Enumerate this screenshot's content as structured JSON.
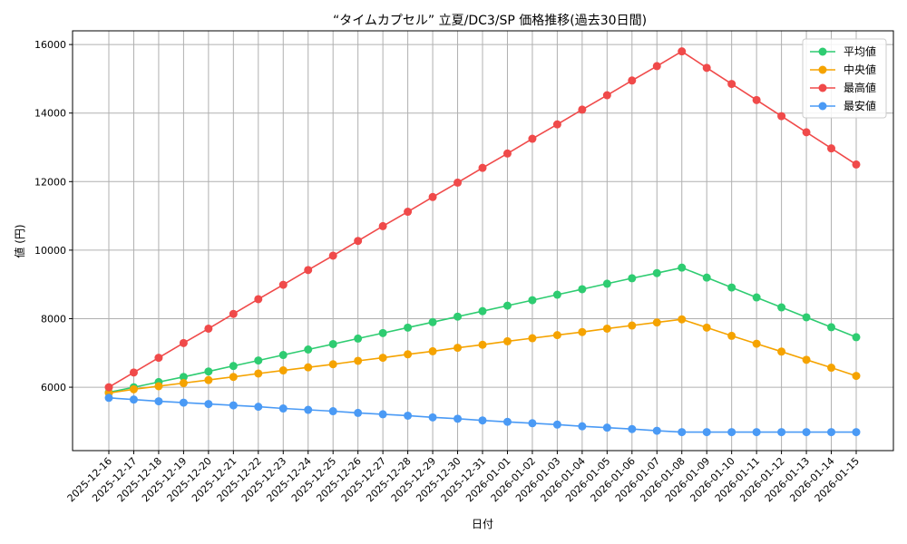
{
  "chart_data": {
    "type": "line",
    "title": "“タイムカプセル” 立夏/DC3/SP 価格推移(過去30日間)",
    "xlabel": "日付",
    "ylabel": "値 (円)",
    "ylim": [
      4150,
      16400
    ],
    "yticks": [
      6000,
      8000,
      10000,
      12000,
      14000,
      16000
    ],
    "grid": true,
    "legend_position": "top-right",
    "categories": [
      "2025-12-16",
      "2025-12-17",
      "2025-12-18",
      "2025-12-19",
      "2025-12-20",
      "2025-12-21",
      "2025-12-22",
      "2025-12-23",
      "2025-12-24",
      "2025-12-25",
      "2025-12-26",
      "2025-12-27",
      "2025-12-28",
      "2025-12-29",
      "2025-12-30",
      "2025-12-31",
      "2026-01-01",
      "2026-01-02",
      "2026-01-03",
      "2026-01-04",
      "2026-01-05",
      "2026-01-06",
      "2026-01-07",
      "2026-01-08",
      "2026-01-09",
      "2026-01-10",
      "2026-01-11",
      "2026-01-12",
      "2026-01-13",
      "2026-01-14",
      "2026-01-15"
    ],
    "series": [
      {
        "name": "平均値",
        "color": "#2ecc71",
        "values": [
          5850,
          6000,
          6150,
          6300,
          6460,
          6620,
          6780,
          6940,
          7100,
          7260,
          7420,
          7580,
          7740,
          7900,
          8060,
          8220,
          8380,
          8540,
          8700,
          8860,
          9020,
          9180,
          9330,
          9490,
          9200,
          8910,
          8620,
          8330,
          8040,
          7750,
          7460
        ]
      },
      {
        "name": "中央値",
        "color": "#f5a300",
        "values": [
          5830,
          5940,
          6030,
          6120,
          6210,
          6300,
          6400,
          6490,
          6580,
          6670,
          6770,
          6860,
          6960,
          7050,
          7150,
          7240,
          7340,
          7430,
          7520,
          7610,
          7710,
          7800,
          7890,
          7980,
          7740,
          7500,
          7270,
          7040,
          6800,
          6570,
          6330
        ]
      },
      {
        "name": "最高値",
        "color": "#f04a4a",
        "values": [
          6000,
          6430,
          6860,
          7290,
          7710,
          8140,
          8570,
          8990,
          9420,
          9840,
          10270,
          10700,
          11120,
          11550,
          11970,
          12400,
          12820,
          13250,
          13670,
          14100,
          14520,
          14950,
          15370,
          15800,
          15320,
          14850,
          14380,
          13910,
          13440,
          12970,
          12500
        ]
      },
      {
        "name": "最安値",
        "color": "#4a9af5",
        "values": [
          5690,
          5640,
          5590,
          5550,
          5510,
          5470,
          5430,
          5380,
          5340,
          5300,
          5250,
          5210,
          5170,
          5120,
          5080,
          5030,
          4990,
          4950,
          4910,
          4860,
          4820,
          4780,
          4730,
          4690,
          4690,
          4690,
          4690,
          4690,
          4690,
          4690,
          4690
        ]
      }
    ]
  }
}
